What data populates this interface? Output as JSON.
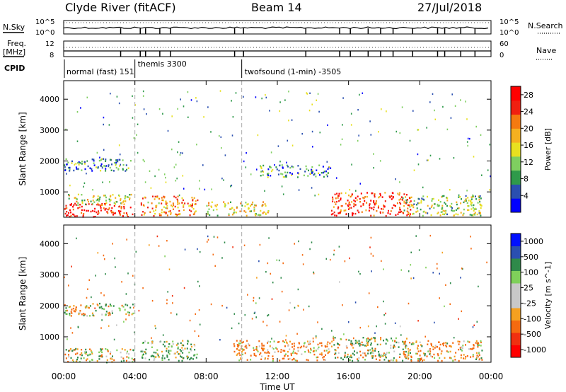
{
  "header": {
    "station": "Clyde River (fitACF)",
    "beam": "Beam 14",
    "date": "27/Jul/2018"
  },
  "strips": {
    "nsky_label": "N.Sky",
    "nsearch_label": "N.Search",
    "nsky_ticks": [
      "10^5",
      "10^0"
    ],
    "nsearch_ticks": [
      "10^5",
      "10^0"
    ],
    "freq_label": "Freq.",
    "freq_unit": "[MHz]",
    "freq_ticks": [
      "12",
      "8"
    ],
    "nave_label": "Nave",
    "nave_ticks": [
      "60",
      "0"
    ],
    "cpid_label": "CPID",
    "cpid_modes": [
      {
        "label": "normal (fast) 151",
        "start_hour": 0.0
      },
      {
        "label": "themis 3300",
        "start_hour": 4.0
      },
      {
        "label": "twofsound (1-min) -3505",
        "start_hour": 10.0
      }
    ]
  },
  "time_axis": {
    "label": "Time UT",
    "ticks": [
      "00:00",
      "04:00",
      "08:00",
      "12:00",
      "16:00",
      "20:00",
      "00:00"
    ]
  },
  "colors": {
    "power": [
      "#0000ff",
      "#2a4fb0",
      "#2f9a4a",
      "#7fcf60",
      "#e8e020",
      "#f5b020",
      "#f57a10",
      "#f02010",
      "#ff0000"
    ],
    "velocity": [
      "#ff0000",
      "#f03010",
      "#f56a10",
      "#f5a020",
      "#c8c8c8",
      "#c8c8c8",
      "#7fd05a",
      "#2f8a4a",
      "#2a4fb0",
      "#0010ff"
    ]
  },
  "chart_data": [
    {
      "type": "heatmap",
      "title": "",
      "xlabel": "",
      "ylabel": "Slant Range [km]",
      "xlim_hours": [
        0,
        24
      ],
      "xtick_hours": [
        0,
        4,
        8,
        12,
        16,
        20,
        24
      ],
      "ylim": [
        180,
        4600
      ],
      "yticks": [
        1000,
        2000,
        3000,
        4000
      ],
      "colorbar": {
        "label": "Power [dB]",
        "ticks": [
          4,
          8,
          12,
          16,
          20,
          24,
          28
        ],
        "range": [
          0,
          30
        ]
      },
      "regions": [
        {
          "t0": 0.0,
          "t1": 3.9,
          "r0": 200,
          "r1": 650,
          "value": 27
        },
        {
          "t0": 0.2,
          "t1": 3.8,
          "r0": 600,
          "r1": 950,
          "value": 14
        },
        {
          "t0": 0.0,
          "t1": 3.9,
          "r0": 1700,
          "r1": 2100,
          "value": 8
        },
        {
          "t0": 4.3,
          "t1": 7.5,
          "r0": 250,
          "r1": 900,
          "value": 20
        },
        {
          "t0": 8.0,
          "t1": 11.5,
          "r0": 250,
          "r1": 700,
          "value": 16
        },
        {
          "t0": 11.0,
          "t1": 15.0,
          "r0": 1500,
          "r1": 1900,
          "value": 8
        },
        {
          "t0": 15.0,
          "t1": 19.5,
          "r0": 250,
          "r1": 1000,
          "value": 25
        },
        {
          "t0": 19.0,
          "t1": 23.5,
          "r0": 250,
          "r1": 900,
          "value": 12
        }
      ]
    },
    {
      "type": "heatmap",
      "title": "",
      "xlabel": "Time UT",
      "ylabel": "Slant Range [km]",
      "xlim_hours": [
        0,
        24
      ],
      "xtick_hours": [
        0,
        4,
        8,
        12,
        16,
        20,
        24
      ],
      "ylim": [
        180,
        4600
      ],
      "yticks": [
        1000,
        2000,
        3000,
        4000
      ],
      "colorbar": {
        "label": "Velocity [m s^-1]",
        "ticks": [
          1000,
          500,
          100,
          25,
          -25,
          -100,
          -500,
          -1000
        ],
        "range": [
          -1200,
          1200
        ]
      },
      "regions": [
        {
          "t0": 0.0,
          "t1": 3.9,
          "r0": 200,
          "r1": 650,
          "value": 0
        },
        {
          "t0": 0.0,
          "t1": 3.9,
          "r0": 1700,
          "r1": 2100,
          "value": 0
        },
        {
          "t0": 4.3,
          "t1": 7.5,
          "r0": 250,
          "r1": 900,
          "value": 150
        },
        {
          "t0": 9.5,
          "t1": 15.0,
          "r0": 250,
          "r1": 900,
          "value": -150
        },
        {
          "t0": 15.0,
          "t1": 19.5,
          "r0": 250,
          "r1": 1000,
          "value": 80
        },
        {
          "t0": 19.0,
          "t1": 23.5,
          "r0": 250,
          "r1": 900,
          "value": -120
        }
      ]
    }
  ]
}
